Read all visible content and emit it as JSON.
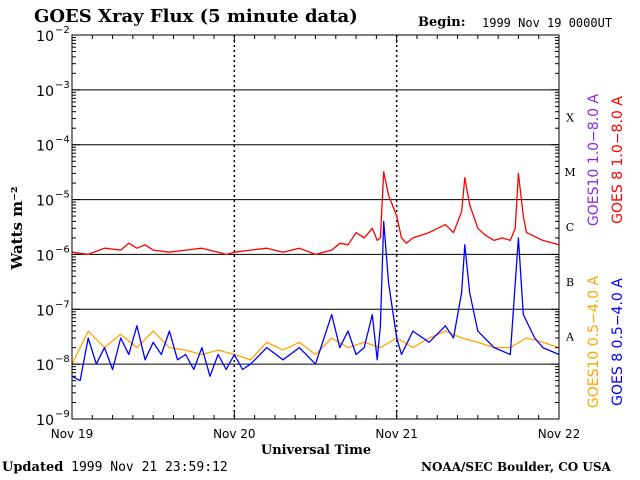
{
  "header": {
    "title": "GOES Xray Flux (5 minute data)",
    "begin_label": "Begin:",
    "begin_value": "1999 Nov 19 0000UT"
  },
  "footer": {
    "updated_label": "Updated",
    "updated_value": "1999 Nov 21 23:59:12",
    "source": "NOAA/SEC Boulder, CO USA"
  },
  "chart_data": {
    "type": "line",
    "title": "GOES Xray Flux (5 minute data)",
    "xlabel": "Universal Time",
    "ylabel": "Watts m⁻²",
    "yscale": "log",
    "ylim": [
      1e-09,
      0.01
    ],
    "y_tick_labels": [
      {
        "base": "10",
        "exp": "−9"
      },
      {
        "base": "10",
        "exp": "−8"
      },
      {
        "base": "10",
        "exp": "−7"
      },
      {
        "base": "10",
        "exp": "−6"
      },
      {
        "base": "10",
        "exp": "−5"
      },
      {
        "base": "10",
        "exp": "−4"
      },
      {
        "base": "10",
        "exp": "−3"
      },
      {
        "base": "10",
        "exp": "−2"
      }
    ],
    "x_tick_labels": [
      "Nov 19",
      "Nov 20",
      "Nov 21",
      "Nov 22"
    ],
    "xlim_days": [
      0,
      3
    ],
    "flare_classes": [
      {
        "label": "A",
        "level": 1e-08
      },
      {
        "label": "B",
        "level": 1e-07
      },
      {
        "label": "C",
        "level": 1e-06
      },
      {
        "label": "M",
        "level": 1e-05
      },
      {
        "label": "X",
        "level": 0.0001
      }
    ],
    "gridlines_y": [
      1e-08,
      1e-07,
      1e-06,
      1e-05,
      0.0001,
      0.001
    ],
    "legend": [
      {
        "text": "GOES10 1.0−8.0 A",
        "color": "#8a2be2"
      },
      {
        "text": "GOES 8 1.0−8.0 A",
        "color": "#ff0000"
      },
      {
        "text": "GOES10 0.5−4.0 A",
        "color": "#ffa500"
      },
      {
        "text": "GOES 8 0.5−4.0 A",
        "color": "#0000ff"
      }
    ],
    "series": [
      {
        "name": "GOES 8 1.0−8.0 A",
        "color": "#ff0000",
        "x": [
          0,
          0.1,
          0.2,
          0.3,
          0.35,
          0.4,
          0.45,
          0.5,
          0.6,
          0.7,
          0.8,
          0.9,
          0.95,
          1.0,
          1.1,
          1.2,
          1.3,
          1.4,
          1.5,
          1.6,
          1.65,
          1.7,
          1.75,
          1.8,
          1.85,
          1.88,
          1.9,
          1.92,
          1.95,
          2.0,
          2.03,
          2.06,
          2.1,
          2.2,
          2.3,
          2.35,
          2.4,
          2.42,
          2.45,
          2.5,
          2.55,
          2.6,
          2.65,
          2.7,
          2.73,
          2.75,
          2.78,
          2.8,
          2.9,
          3.0
        ],
        "y": [
          1.1e-06,
          1e-06,
          1.3e-06,
          1.2e-06,
          1.6e-06,
          1.3e-06,
          1.5e-06,
          1.2e-06,
          1.1e-06,
          1.2e-06,
          1.3e-06,
          1.1e-06,
          1e-06,
          1.1e-06,
          1.2e-06,
          1.3e-06,
          1.1e-06,
          1.3e-06,
          1e-06,
          1.2e-06,
          1.6e-06,
          1.5e-06,
          2.5e-06,
          2e-06,
          3e-06,
          1.8e-06,
          2e-06,
          3.2e-05,
          1.2e-05,
          5e-06,
          2e-06,
          1.6e-06,
          2e-06,
          2.5e-06,
          3.5e-06,
          2.5e-06,
          6e-06,
          2.5e-05,
          8e-06,
          3e-06,
          2.2e-06,
          1.8e-06,
          2e-06,
          1.8e-06,
          3e-06,
          3e-05,
          5e-06,
          2.5e-06,
          1.8e-06,
          1.5e-06
        ]
      },
      {
        "name": "GOES 8 0.5−4.0 A",
        "color": "#0000ff",
        "x": [
          0,
          0.05,
          0.1,
          0.15,
          0.2,
          0.25,
          0.3,
          0.35,
          0.4,
          0.45,
          0.5,
          0.55,
          0.6,
          0.65,
          0.7,
          0.75,
          0.8,
          0.85,
          0.9,
          0.95,
          1.0,
          1.05,
          1.1,
          1.2,
          1.3,
          1.4,
          1.5,
          1.6,
          1.65,
          1.7,
          1.75,
          1.8,
          1.85,
          1.88,
          1.9,
          1.92,
          1.95,
          2.0,
          2.03,
          2.1,
          2.2,
          2.3,
          2.35,
          2.4,
          2.42,
          2.45,
          2.5,
          2.6,
          2.7,
          2.75,
          2.78,
          2.85,
          2.9,
          3.0
        ],
        "y": [
          6e-09,
          5e-09,
          3e-08,
          1e-08,
          2e-08,
          8e-09,
          3e-08,
          1.5e-08,
          5e-08,
          1.2e-08,
          2.5e-08,
          1.5e-08,
          4e-08,
          1.2e-08,
          1.5e-08,
          8e-09,
          2e-08,
          6e-09,
          1.5e-08,
          8e-09,
          1.5e-08,
          8e-09,
          1e-08,
          2e-08,
          1.2e-08,
          2e-08,
          1e-08,
          8e-08,
          2e-08,
          4e-08,
          1.5e-08,
          2e-08,
          8e-08,
          1.2e-08,
          5e-08,
          4e-06,
          3e-07,
          3e-08,
          1.5e-08,
          4e-08,
          2.5e-08,
          5e-08,
          3e-08,
          2e-07,
          1.5e-06,
          2e-07,
          4e-08,
          2e-08,
          1.5e-08,
          2e-06,
          8e-08,
          3e-08,
          2e-08,
          1.5e-08
        ]
      },
      {
        "name": "GOES10 0.5−4.0 A",
        "color": "#ffa500",
        "x": [
          0,
          0.1,
          0.2,
          0.3,
          0.4,
          0.5,
          0.6,
          0.7,
          0.8,
          0.9,
          1.0,
          1.1,
          1.2,
          1.3,
          1.4,
          1.5,
          1.6,
          1.7,
          1.8,
          1.9,
          2.0,
          2.1,
          2.2,
          2.3,
          2.4,
          2.5,
          2.6,
          2.7,
          2.8,
          2.9,
          3.0
        ],
        "y": [
          1e-08,
          4e-08,
          2e-08,
          3.5e-08,
          2e-08,
          4e-08,
          2e-08,
          1.8e-08,
          1.5e-08,
          1.8e-08,
          1.5e-08,
          1.2e-08,
          2.5e-08,
          1.8e-08,
          2.5e-08,
          1.5e-08,
          3e-08,
          2e-08,
          2.5e-08,
          2e-08,
          3e-08,
          2e-08,
          3e-08,
          4e-08,
          3e-08,
          2.5e-08,
          2e-08,
          2e-08,
          3e-08,
          2.5e-08,
          2e-08
        ]
      }
    ]
  }
}
